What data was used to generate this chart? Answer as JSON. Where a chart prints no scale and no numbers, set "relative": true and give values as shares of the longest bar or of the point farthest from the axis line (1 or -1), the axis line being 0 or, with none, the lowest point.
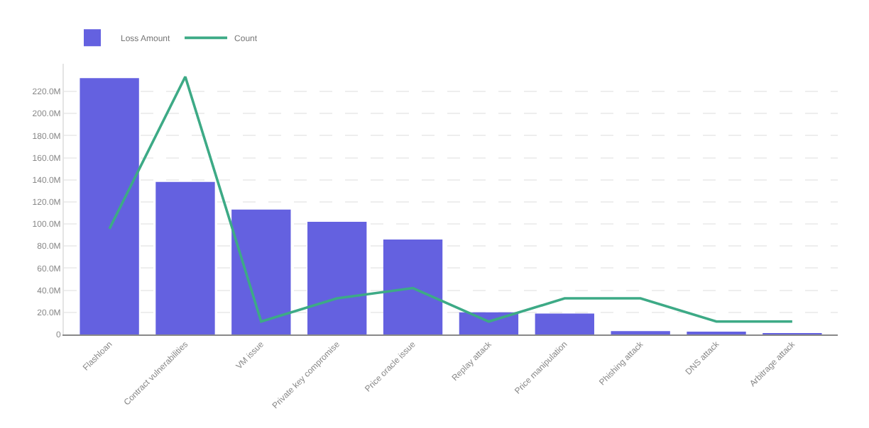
{
  "chart_data": [
    {
      "type": "bar",
      "categories": [
        "Flashloan",
        "Contract vulnerabilities",
        "VM issue",
        "Private key compromise",
        "Price oracle issue",
        "Replay attack",
        "Price manipulation",
        "Phishing attack",
        "DNS attack",
        "Arbitrage attack"
      ],
      "series": [
        {
          "name": "Loss Amount",
          "color": "#6461e0",
          "values": [
            232,
            138,
            113,
            102,
            86,
            20,
            19,
            3,
            2,
            1
          ]
        }
      ],
      "ylim": [
        0,
        245
      ],
      "yticks": [
        0,
        {
          "value": 20,
          "label": "20.0M"
        },
        {
          "value": 40,
          "label": "40.0M"
        },
        {
          "value": 60,
          "label": "60.0M"
        },
        {
          "value": 80,
          "label": "80.0M"
        },
        {
          "value": 100,
          "label": "100.0M"
        },
        {
          "value": 120,
          "label": "120.0M"
        },
        {
          "value": 140,
          "label": "140.0M"
        },
        {
          "value": 160,
          "label": "160.0M"
        },
        {
          "value": 180,
          "label": "180.0M"
        },
        {
          "value": 200,
          "label": "200.0M"
        },
        {
          "value": 220,
          "label": "220.0M"
        }
      ],
      "grid": "y",
      "legend": "top left"
    },
    {
      "type": "line",
      "relative": true,
      "categories": [
        null,
        null,
        null,
        null,
        null,
        null,
        null,
        null,
        null,
        null
      ],
      "series": [
        {
          "name": "Count",
          "color": "#3daa86",
          "values": [
            0.41,
            1,
            0.05,
            0.14,
            0.18,
            0.05,
            0.14,
            0.14,
            0.05,
            0.05
          ]
        }
      ],
      "legend": "top left",
      "line_style": "solid",
      "marker": "none"
    }
  ]
}
